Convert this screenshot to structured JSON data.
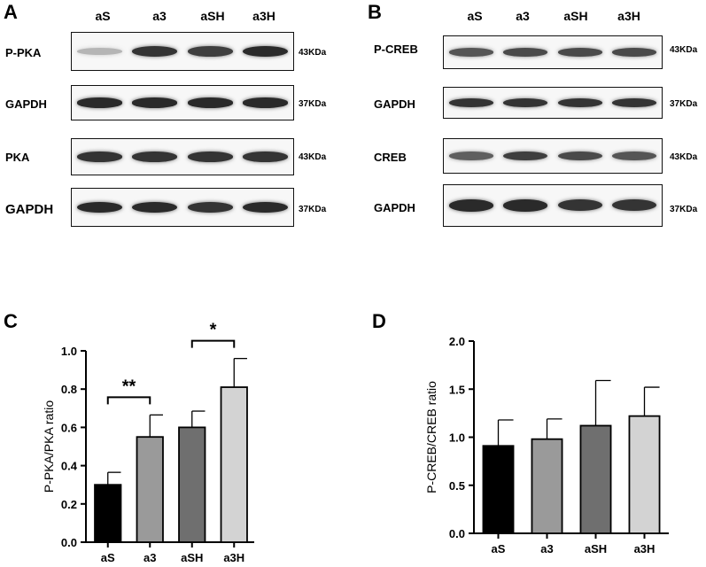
{
  "panels": {
    "A": "A",
    "B": "B",
    "C": "C",
    "D": "D"
  },
  "lanes": [
    "aS",
    "a3",
    "aSH",
    "a3H"
  ],
  "blots_A": [
    {
      "label": "P-PKA",
      "kda": "43KDa",
      "intensity": [
        0.25,
        0.85,
        0.8,
        0.9
      ]
    },
    {
      "label": "GAPDH",
      "kda": "37KDa",
      "intensity": [
        0.9,
        0.9,
        0.9,
        0.9
      ]
    },
    {
      "label": "PKA",
      "kda": "43KDa",
      "intensity": [
        0.85,
        0.85,
        0.85,
        0.85
      ]
    },
    {
      "label": "GAPDH",
      "kda": "37KDa",
      "intensity": [
        0.9,
        0.9,
        0.85,
        0.9
      ]
    }
  ],
  "blots_B": [
    {
      "label": "P-CREB",
      "kda": "43KDa",
      "intensity": [
        0.7,
        0.75,
        0.75,
        0.75
      ]
    },
    {
      "label": "GAPDH",
      "kda": "37KDa",
      "intensity": [
        0.85,
        0.85,
        0.85,
        0.85
      ]
    },
    {
      "label": "CREB",
      "kda": "43KDa",
      "intensity": [
        0.65,
        0.8,
        0.75,
        0.7
      ]
    },
    {
      "label": "GAPDH",
      "kda": "37KDa",
      "intensity": [
        0.9,
        0.9,
        0.85,
        0.85
      ]
    }
  ],
  "chart_data": [
    {
      "type": "bar",
      "panel": "C",
      "categories": [
        "aS",
        "a3",
        "aSH",
        "a3H"
      ],
      "values": [
        0.3,
        0.55,
        0.6,
        0.81
      ],
      "errors": [
        0.065,
        0.115,
        0.085,
        0.15
      ],
      "colors": [
        "#000000",
        "#9a9a9a",
        "#6f6f6f",
        "#d3d3d3"
      ],
      "ylabel": "P-PKA/PKA ratio",
      "ylim": [
        0,
        1.0
      ],
      "yticks": [
        "0.0",
        "0.2",
        "0.4",
        "0.6",
        "0.8",
        "1.0"
      ],
      "significance": [
        {
          "from": 0,
          "to": 1,
          "label": "**"
        },
        {
          "from": 2,
          "to": 3,
          "label": "*"
        }
      ]
    },
    {
      "type": "bar",
      "panel": "D",
      "categories": [
        "aS",
        "a3",
        "aSH",
        "a3H"
      ],
      "values": [
        0.91,
        0.98,
        1.12,
        1.22
      ],
      "errors": [
        0.27,
        0.21,
        0.47,
        0.3
      ],
      "colors": [
        "#000000",
        "#9a9a9a",
        "#6f6f6f",
        "#d3d3d3"
      ],
      "ylabel": "P-CREB/CREB ratio",
      "ylim": [
        0,
        2.0
      ],
      "yticks": [
        "0.0",
        "0.5",
        "1.0",
        "1.5",
        "2.0"
      ]
    }
  ]
}
